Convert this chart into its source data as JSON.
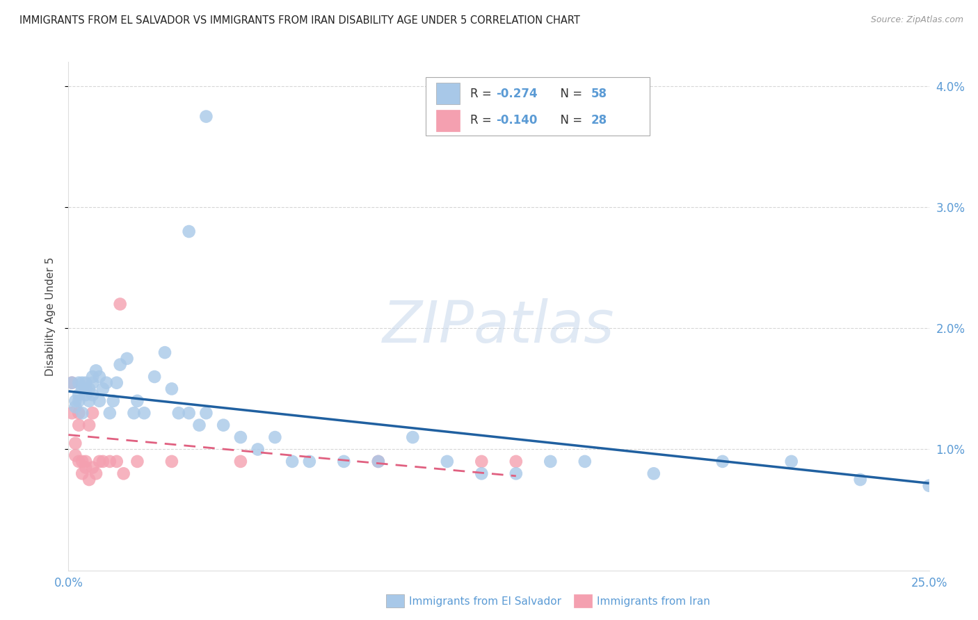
{
  "title": "IMMIGRANTS FROM EL SALVADOR VS IMMIGRANTS FROM IRAN DISABILITY AGE UNDER 5 CORRELATION CHART",
  "source": "Source: ZipAtlas.com",
  "ylabel": "Disability Age Under 5",
  "x_lim": [
    0.0,
    0.25
  ],
  "y_lim": [
    0.0,
    0.042
  ],
  "y_ticks": [
    0.01,
    0.02,
    0.03,
    0.04
  ],
  "y_tick_labels": [
    "1.0%",
    "2.0%",
    "3.0%",
    "4.0%"
  ],
  "x_ticks": [
    0.0,
    0.25
  ],
  "x_tick_labels": [
    "0.0%",
    "25.0%"
  ],
  "el_salvador_color": "#a8c8e8",
  "iran_color": "#f4a0b0",
  "el_salvador_line_color": "#2060a0",
  "iran_line_color": "#e06080",
  "legend_el_color": "#a8c8e8",
  "legend_iran_color": "#f4a0b0",
  "tick_color": "#5b9bd5",
  "background_color": "#ffffff",
  "grid_color": "#cccccc",
  "watermark": "ZIPatlas",
  "legend_r1": "R = -0.274",
  "legend_n1": "N = 58",
  "legend_r2": "R = -0.140",
  "legend_n2": "N = 28",
  "legend_label1": "Immigrants from El Salvador",
  "legend_label2": "Immigrants from Iran",
  "el_x": [
    0.001,
    0.002,
    0.002,
    0.003,
    0.003,
    0.003,
    0.004,
    0.004,
    0.004,
    0.005,
    0.005,
    0.005,
    0.006,
    0.006,
    0.007,
    0.007,
    0.007,
    0.008,
    0.009,
    0.009,
    0.01,
    0.011,
    0.012,
    0.013,
    0.014,
    0.015,
    0.017,
    0.019,
    0.02,
    0.022,
    0.025,
    0.028,
    0.03,
    0.032,
    0.035,
    0.038,
    0.04,
    0.045,
    0.05,
    0.055,
    0.06,
    0.065,
    0.07,
    0.08,
    0.09,
    0.1,
    0.11,
    0.12,
    0.13,
    0.14,
    0.15,
    0.17,
    0.19,
    0.21,
    0.23,
    0.25,
    0.04,
    0.035
  ],
  "el_y": [
    0.0155,
    0.0135,
    0.014,
    0.0155,
    0.0145,
    0.014,
    0.015,
    0.0155,
    0.013,
    0.0145,
    0.015,
    0.0155,
    0.014,
    0.015,
    0.016,
    0.0145,
    0.0155,
    0.0165,
    0.014,
    0.016,
    0.015,
    0.0155,
    0.013,
    0.014,
    0.0155,
    0.017,
    0.0175,
    0.013,
    0.014,
    0.013,
    0.016,
    0.018,
    0.015,
    0.013,
    0.013,
    0.012,
    0.013,
    0.012,
    0.011,
    0.01,
    0.011,
    0.009,
    0.009,
    0.009,
    0.009,
    0.011,
    0.009,
    0.008,
    0.008,
    0.009,
    0.009,
    0.008,
    0.009,
    0.009,
    0.0075,
    0.007,
    0.0375,
    0.028
  ],
  "iran_x": [
    0.001,
    0.001,
    0.002,
    0.002,
    0.003,
    0.003,
    0.003,
    0.004,
    0.004,
    0.005,
    0.005,
    0.006,
    0.006,
    0.007,
    0.007,
    0.008,
    0.009,
    0.01,
    0.012,
    0.014,
    0.015,
    0.016,
    0.02,
    0.03,
    0.05,
    0.09,
    0.12,
    0.13
  ],
  "iran_y": [
    0.0155,
    0.013,
    0.0105,
    0.0095,
    0.013,
    0.012,
    0.009,
    0.009,
    0.008,
    0.0085,
    0.009,
    0.012,
    0.0075,
    0.013,
    0.0085,
    0.008,
    0.009,
    0.009,
    0.009,
    0.009,
    0.022,
    0.008,
    0.009,
    0.009,
    0.009,
    0.009,
    0.009,
    0.009
  ],
  "el_line_x": [
    0.0,
    0.25
  ],
  "el_line_y": [
    0.0148,
    0.0072
  ],
  "iran_line_x": [
    0.0,
    0.13
  ],
  "iran_line_y": [
    0.0112,
    0.0078
  ]
}
